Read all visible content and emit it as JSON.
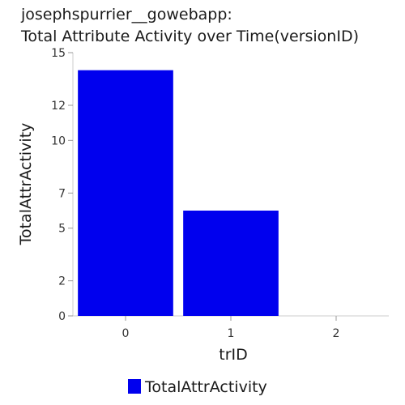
{
  "chart_data": {
    "type": "bar",
    "title": [
      "josephspurrier__gowebapp:",
      "Total Attribute Activity over Time(versionID)"
    ],
    "xlabel": "trID",
    "ylabel": "TotalAttrActivity",
    "categories": [
      "0",
      "1",
      "2"
    ],
    "series": [
      {
        "name": "TotalAttrActivity",
        "values": [
          14,
          6,
          0
        ],
        "color": "#0000ee"
      }
    ],
    "ylim": [
      0,
      15
    ],
    "yticks": [
      0,
      2,
      5,
      7,
      10,
      12,
      15
    ],
    "legend_position": "bottom-center",
    "grid": false
  }
}
